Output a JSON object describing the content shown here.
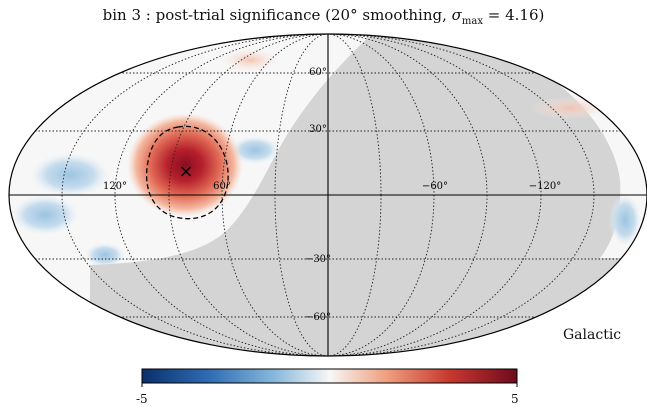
{
  "title": {
    "prefix": "bin 3 : post-trial significance (20° smoothing, ",
    "sigma_symbol": "σ",
    "sigma_sub": "max",
    "suffix": " = 4.16)"
  },
  "map": {
    "projection": "mollweide",
    "frame_label": "Galactic",
    "meridian_labels": [
      "120°",
      "60°",
      "−60°",
      "−120°"
    ],
    "parallel_labels": [
      "60°",
      "30°",
      "−30°",
      "−60°"
    ],
    "max_marker": "×"
  },
  "colorbar": {
    "min_label": "-5",
    "max_label": "5",
    "colors": [
      "#0a2f6b",
      "#2f6db3",
      "#86b7da",
      "#f7f7f7",
      "#f0a080",
      "#c8382f",
      "#6e0a1c"
    ]
  }
}
